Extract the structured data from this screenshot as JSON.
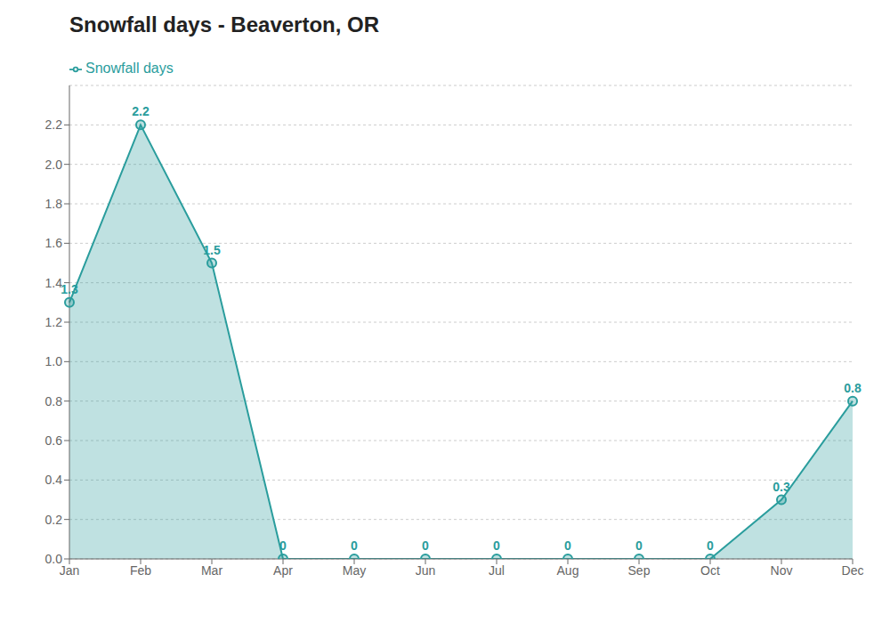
{
  "chart_data": {
    "type": "area",
    "title": "Snowfall days - Beaverton, OR",
    "categories": [
      "Jan",
      "Feb",
      "Mar",
      "Apr",
      "May",
      "Jun",
      "Jul",
      "Aug",
      "Sep",
      "Oct",
      "Nov",
      "Dec"
    ],
    "series": [
      {
        "name": "Snowfall days",
        "color": "#2a9d9d",
        "marker": "circle",
        "values": [
          1.3,
          2.2,
          1.5,
          0,
          0,
          0,
          0,
          0,
          0,
          0,
          0.3,
          0.8
        ]
      }
    ],
    "ylim": [
      0,
      2.4
    ],
    "yticks": [
      {
        "value": 0,
        "label": "0.0"
      },
      0.2,
      0.4,
      0.6,
      0.8,
      {
        "value": 1,
        "label": "1.0"
      },
      1.2,
      1.4,
      1.6,
      1.8,
      {
        "value": 2,
        "label": "2.0"
      },
      2.2
    ],
    "grid": true,
    "legend": "upper left",
    "data_labels": true
  }
}
